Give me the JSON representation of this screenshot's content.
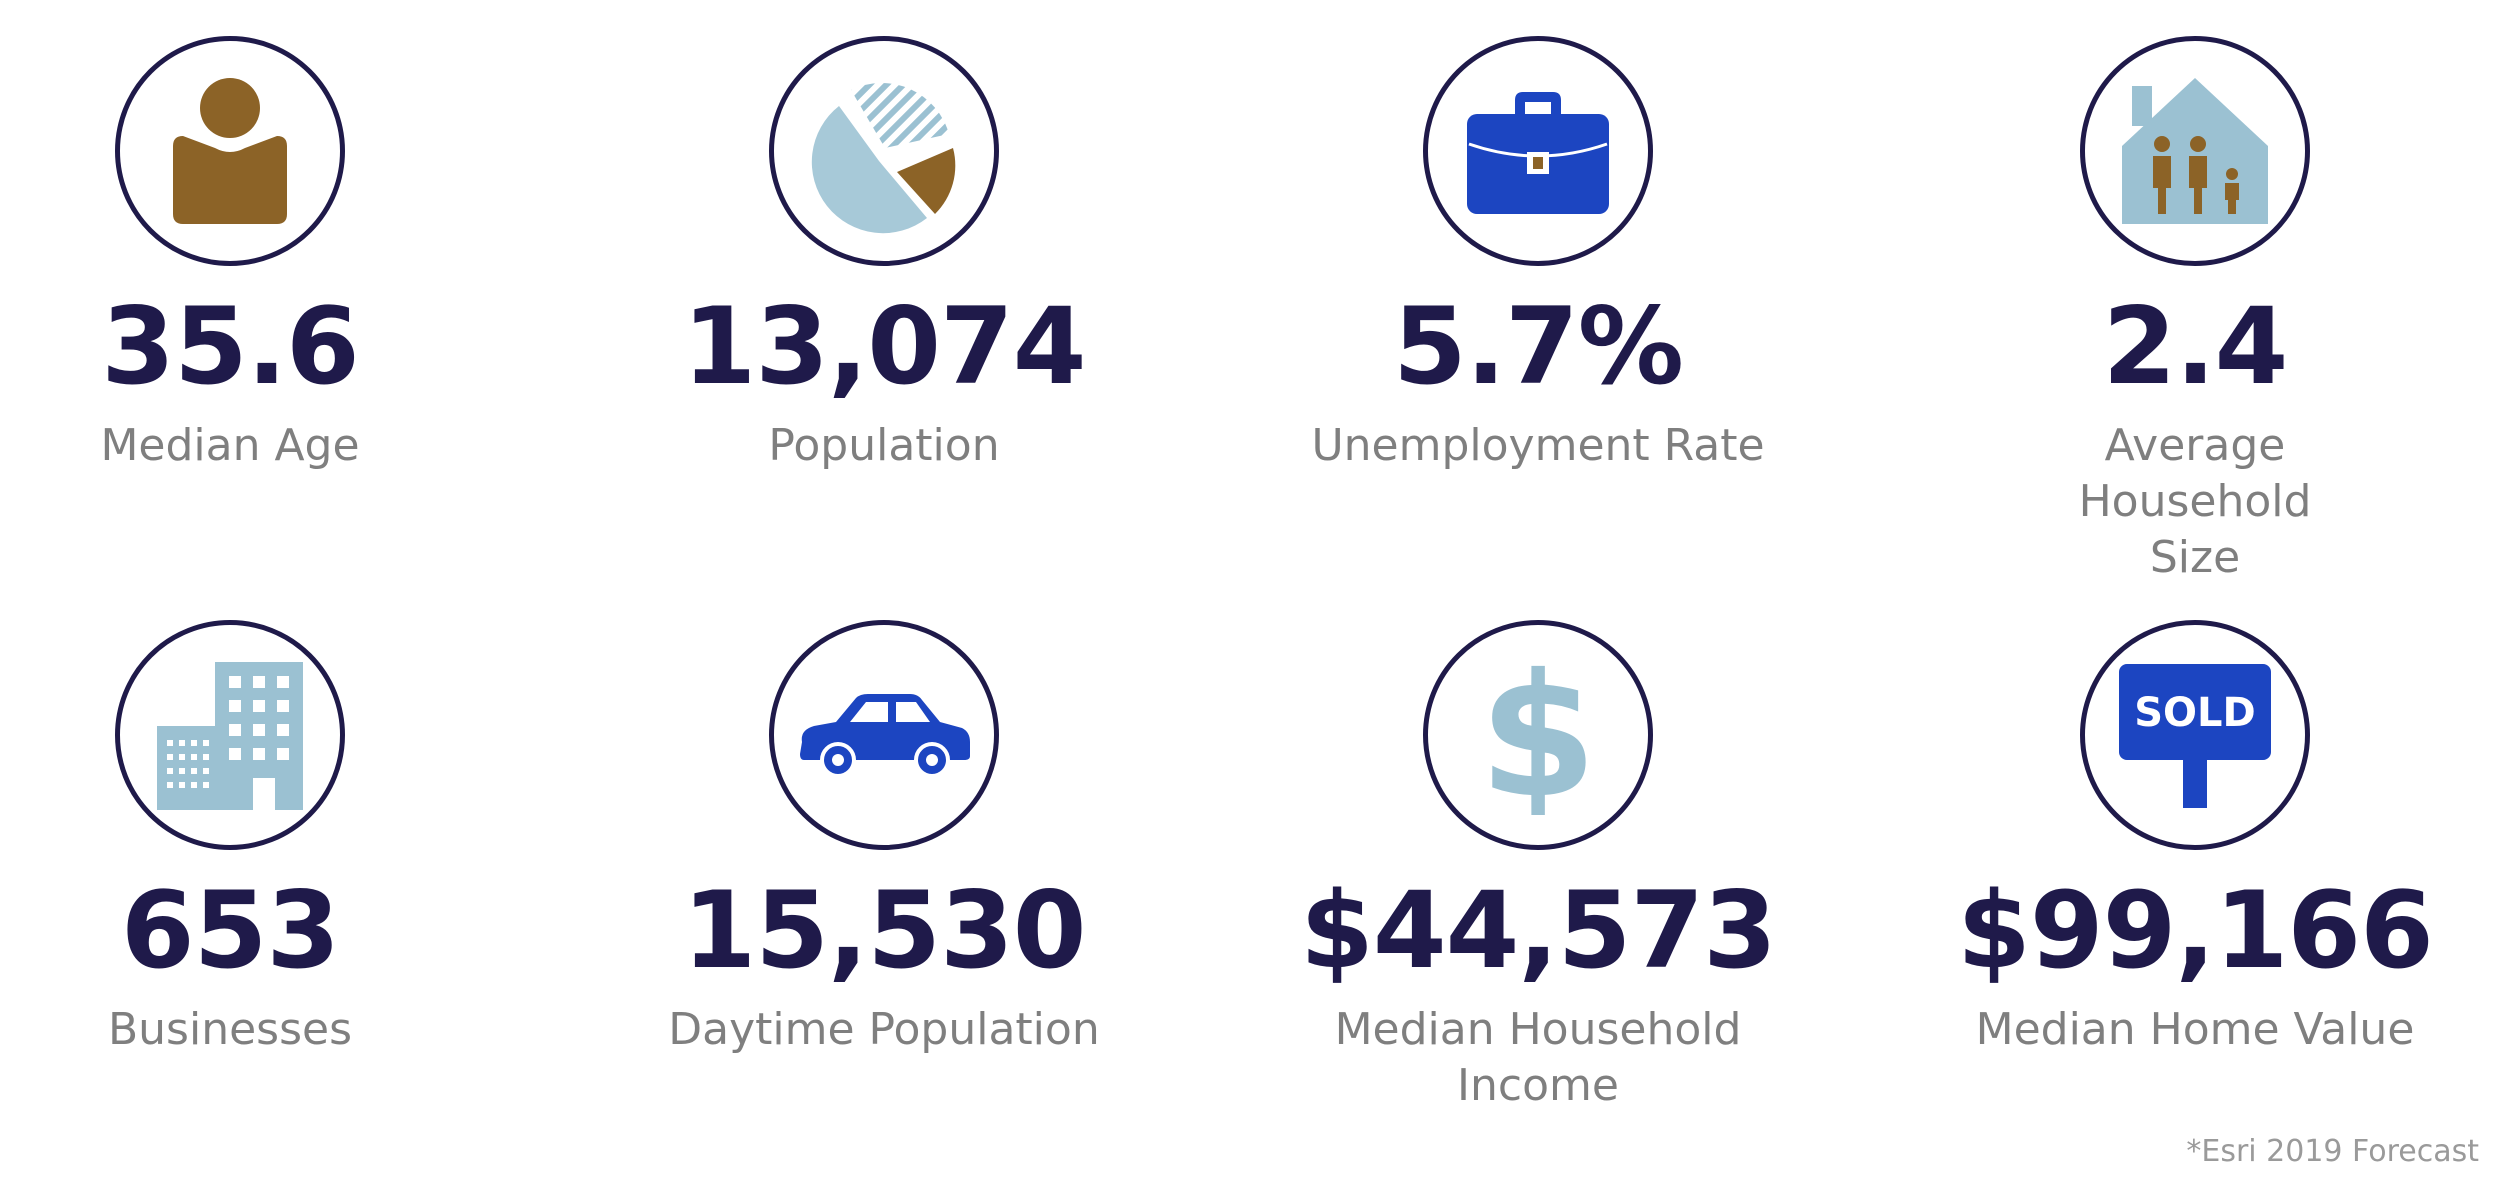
{
  "stats": [
    {
      "value": "35.6",
      "label": "Median Age",
      "icon": "person-icon"
    },
    {
      "value": "13,074",
      "label": "Population",
      "icon": "pie-chart-icon"
    },
    {
      "value": "5.7%",
      "label": "Unemployment Rate",
      "icon": "briefcase-icon"
    },
    {
      "value": "2.4",
      "label": "Average Household Size",
      "icon": "house-family-icon"
    },
    {
      "value": "653",
      "label": "Businesses",
      "icon": "building-icon"
    },
    {
      "value": "15,530",
      "label": "Daytime Population",
      "icon": "car-icon"
    },
    {
      "value": "$44,573",
      "label": "Median Household Income",
      "icon": "dollar-icon"
    },
    {
      "value": "$99,166",
      "label": "Median Home Value",
      "icon": "sold-sign-icon",
      "sign_text": "SOLD"
    }
  ],
  "footnote": "*Esri 2019 Forecast",
  "colors": {
    "navy": "#1f1a4a",
    "gold": "#8c6327",
    "light_blue": "#9bc1d2",
    "royal_blue": "#1c45c1",
    "gray_text": "#7f7f7f"
  }
}
